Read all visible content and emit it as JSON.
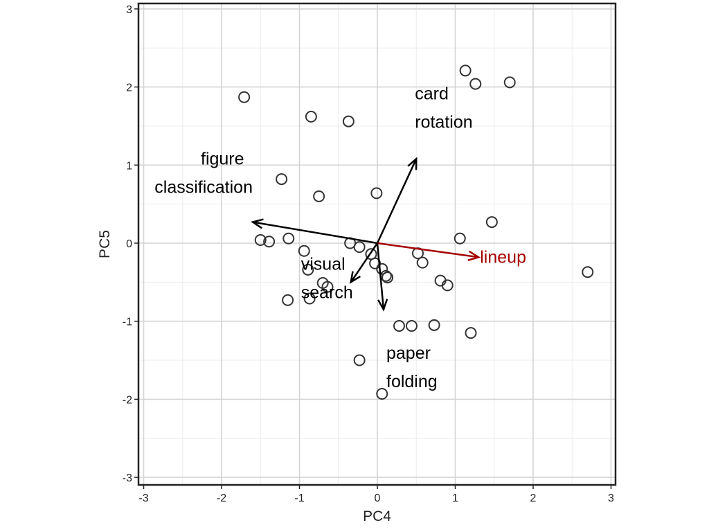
{
  "chart_data": {
    "type": "scatter",
    "title": "",
    "xlabel": "PC4",
    "ylabel": "PC5",
    "xlim": [
      -3,
      3
    ],
    "ylim": [
      -3,
      3
    ],
    "x_ticks": [
      "-3",
      "-2",
      "-1",
      "0",
      "1",
      "2",
      "3"
    ],
    "y_ticks": [
      "-3",
      "-2",
      "-1",
      "0",
      "1",
      "2",
      "3"
    ],
    "grid": true,
    "points": [
      {
        "x": -1.71,
        "y": 1.87
      },
      {
        "x": -0.85,
        "y": 1.62
      },
      {
        "x": -0.37,
        "y": 1.56
      },
      {
        "x": 1.13,
        "y": 2.21
      },
      {
        "x": 1.26,
        "y": 2.04
      },
      {
        "x": 1.7,
        "y": 2.06
      },
      {
        "x": -1.23,
        "y": 0.82
      },
      {
        "x": -0.75,
        "y": 0.6
      },
      {
        "x": -0.01,
        "y": 0.64
      },
      {
        "x": 1.47,
        "y": 0.27
      },
      {
        "x": 1.06,
        "y": 0.06
      },
      {
        "x": 2.7,
        "y": -0.37
      },
      {
        "x": -1.5,
        "y": 0.04
      },
      {
        "x": -1.39,
        "y": 0.02
      },
      {
        "x": -1.14,
        "y": 0.06
      },
      {
        "x": -0.94,
        "y": -0.1
      },
      {
        "x": -0.89,
        "y": -0.34
      },
      {
        "x": -0.7,
        "y": -0.51
      },
      {
        "x": -0.64,
        "y": -0.56
      },
      {
        "x": -0.87,
        "y": -0.71
      },
      {
        "x": -1.15,
        "y": -0.73
      },
      {
        "x": -0.35,
        "y": 0.0
      },
      {
        "x": -0.23,
        "y": -0.05
      },
      {
        "x": -0.08,
        "y": -0.14
      },
      {
        "x": -0.03,
        "y": -0.26
      },
      {
        "x": 0.06,
        "y": -0.33
      },
      {
        "x": 0.11,
        "y": -0.42
      },
      {
        "x": 0.13,
        "y": -0.44
      },
      {
        "x": 0.52,
        "y": -0.13
      },
      {
        "x": 0.58,
        "y": -0.25
      },
      {
        "x": 0.81,
        "y": -0.48
      },
      {
        "x": 0.9,
        "y": -0.54
      },
      {
        "x": 0.28,
        "y": -1.06
      },
      {
        "x": 0.44,
        "y": -1.06
      },
      {
        "x": 0.73,
        "y": -1.05
      },
      {
        "x": 1.2,
        "y": -1.15
      },
      {
        "x": -0.23,
        "y": -1.5
      },
      {
        "x": 0.06,
        "y": -1.93
      }
    ],
    "vectors": [
      {
        "label_lines": [
          "card",
          "rotation"
        ],
        "x": 0.5,
        "y": 1.08,
        "color": "#000000"
      },
      {
        "label_lines": [
          "figure",
          "classification"
        ],
        "x": -1.6,
        "y": 0.27,
        "color": "#000000"
      },
      {
        "label_lines": [
          "lineup"
        ],
        "x": 1.3,
        "y": -0.18,
        "color": "#a50000"
      },
      {
        "label_lines": [
          "visual",
          "search"
        ],
        "x": -0.34,
        "y": -0.5,
        "color": "#000000"
      },
      {
        "label_lines": [
          "paper",
          "folding"
        ],
        "x": 0.08,
        "y": -0.85,
        "color": "#000000"
      }
    ]
  }
}
